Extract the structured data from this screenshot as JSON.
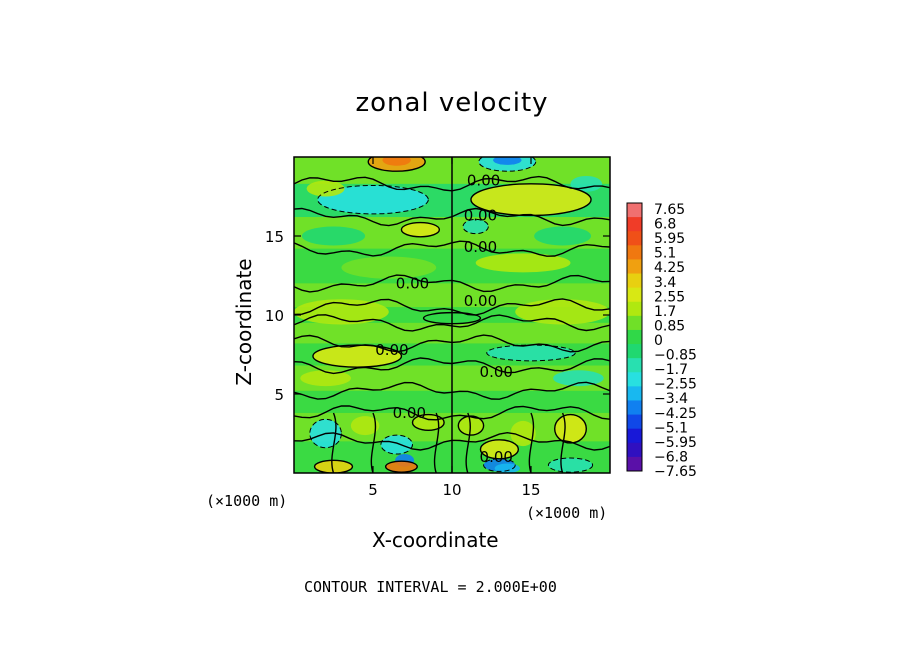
{
  "chart_data": {
    "type": "heatmap",
    "title": "zonal velocity",
    "xlabel": "X-coordinate",
    "ylabel": "Z-coordinate",
    "x_unit_label": "(×1000 m)",
    "x_unit_label_right": "(×1000 m)",
    "xlim": [
      0,
      20
    ],
    "ylim": [
      0,
      20
    ],
    "x_ticks": [
      5,
      10,
      15
    ],
    "y_ticks": [
      5,
      10,
      15
    ],
    "contour_interval_text": "CONTOUR INTERVAL = 2.000E+00",
    "contour_labels": [
      "0.00",
      "0.00",
      "0.00",
      "0.00",
      "0.00",
      "0.00",
      "0.00",
      "0.00",
      "0.00"
    ],
    "colorbar": {
      "labels": [
        "7.65",
        "6.8",
        "5.95",
        "5.1",
        "4.25",
        "3.4",
        "2.55",
        "1.7",
        "0.85",
        "0",
        "−0.85",
        "−1.7",
        "−2.55",
        "−3.4",
        "−4.25",
        "−5.1",
        "−5.95",
        "−6.8",
        "−7.65"
      ],
      "colors": [
        "#f07070",
        "#f03c28",
        "#f05018",
        "#f07810",
        "#f0a010",
        "#e8d010",
        "#d8e814",
        "#b0e810",
        "#70e028",
        "#30d848",
        "#20d870",
        "#28e0b0",
        "#28e0e0",
        "#18b8f0",
        "#1080f0",
        "#1048e8",
        "#1818d8",
        "#3010c0",
        "#5a10a8"
      ]
    }
  },
  "annotation": {
    "contour_interval": "CONTOUR INTERVAL = 2.000E+00"
  }
}
